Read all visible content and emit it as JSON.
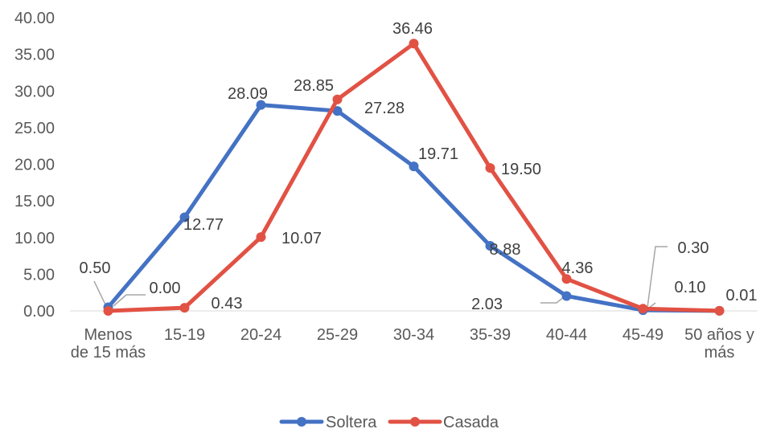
{
  "chart_data": {
    "type": "line",
    "categories": [
      "Menos de 15 más",
      "15-19",
      "20-24",
      "25-29",
      "30-34",
      "35-39",
      "40-44",
      "45-49",
      "50 años y más"
    ],
    "category_lines": [
      [
        "Menos",
        "de 15 más"
      ],
      [
        "15-19"
      ],
      [
        "20-24"
      ],
      [
        "25-29"
      ],
      [
        "30-34"
      ],
      [
        "35-39"
      ],
      [
        "40-44"
      ],
      [
        "45-49"
      ],
      [
        "50 años y",
        "más"
      ]
    ],
    "series": [
      {
        "name": "Soltera",
        "color": "#4472C4",
        "values": [
          0.5,
          12.77,
          28.09,
          27.28,
          19.71,
          8.88,
          2.03,
          0.1,
          0.01
        ],
        "labels": [
          "0.50",
          "12.77",
          "28.09",
          "27.28",
          "19.71",
          "8.88",
          "2.03",
          "0.10",
          "0.01"
        ]
      },
      {
        "name": "Casada",
        "color": "#E15244",
        "values": [
          0.0,
          0.43,
          10.07,
          28.85,
          36.46,
          19.5,
          4.36,
          0.3,
          0.01
        ],
        "labels": [
          "0.00",
          "0.43",
          "10.07",
          "28.85",
          "36.46",
          "19.50",
          "4.36",
          "0.30",
          ""
        ]
      }
    ],
    "y_ticks": [
      "0.00",
      "5.00",
      "10.00",
      "15.00",
      "20.00",
      "25.00",
      "30.00",
      "35.00",
      "40.00"
    ],
    "ylim": [
      0,
      40
    ],
    "grid": false,
    "legend_position": "bottom",
    "title": "",
    "xlabel": "",
    "ylabel": ""
  }
}
